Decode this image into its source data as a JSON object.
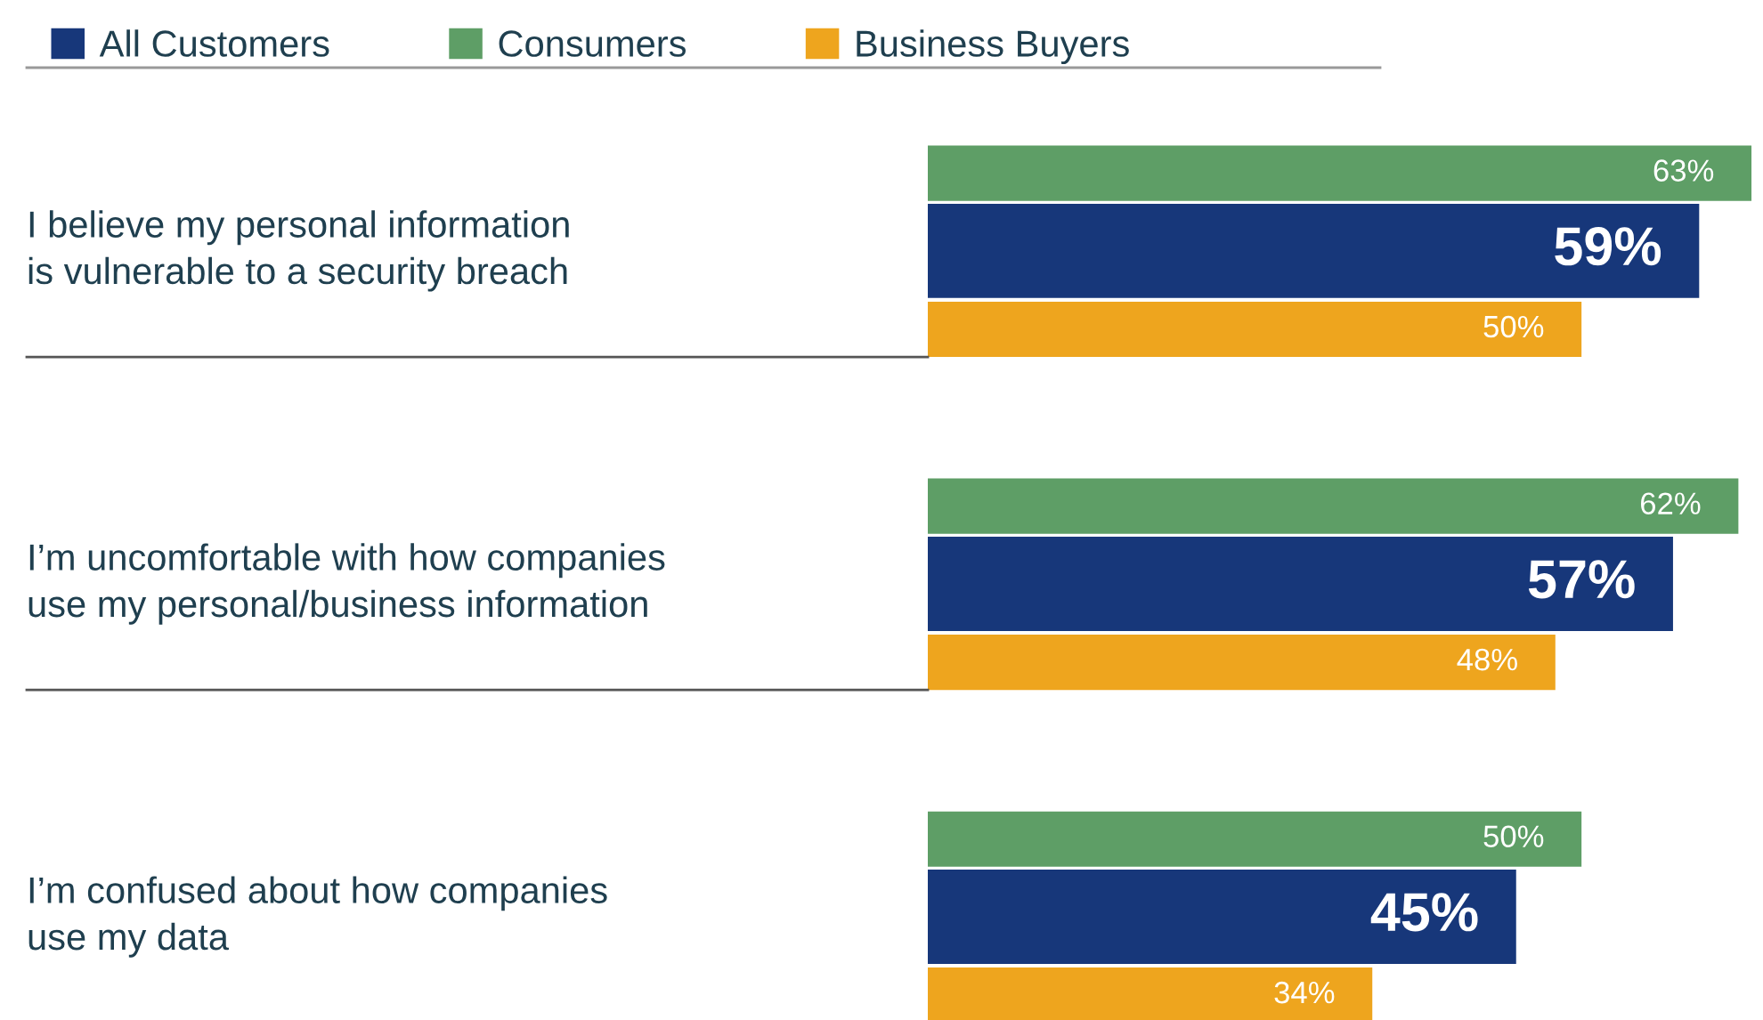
{
  "chart_data": {
    "type": "bar",
    "orientation": "horizontal",
    "legend": "top left",
    "data_labels": false,
    "categories": [
      "I believe my personal information\nis vulnerable to a security breach",
      "I’m uncomfortable with how companies\nuse my personal/business information",
      "I’m confused about how companies\nuse my data"
    ],
    "series": [
      {
        "name": "All Customers",
        "color": "#17377a",
        "values": [
          59,
          57,
          45
        ],
        "value_labels": [
          "59%",
          "57%",
          "45%"
        ]
      },
      {
        "name": "Consumers",
        "color": "#5e9e66",
        "values": [
          63,
          62,
          50
        ],
        "value_labels": [
          "63%",
          "62%",
          "50%"
        ]
      },
      {
        "name": "Business Buyers",
        "color": "#eea51e",
        "values": [
          50,
          48,
          34
        ],
        "value_labels": [
          "50%",
          "48%",
          "34%"
        ]
      }
    ]
  }
}
